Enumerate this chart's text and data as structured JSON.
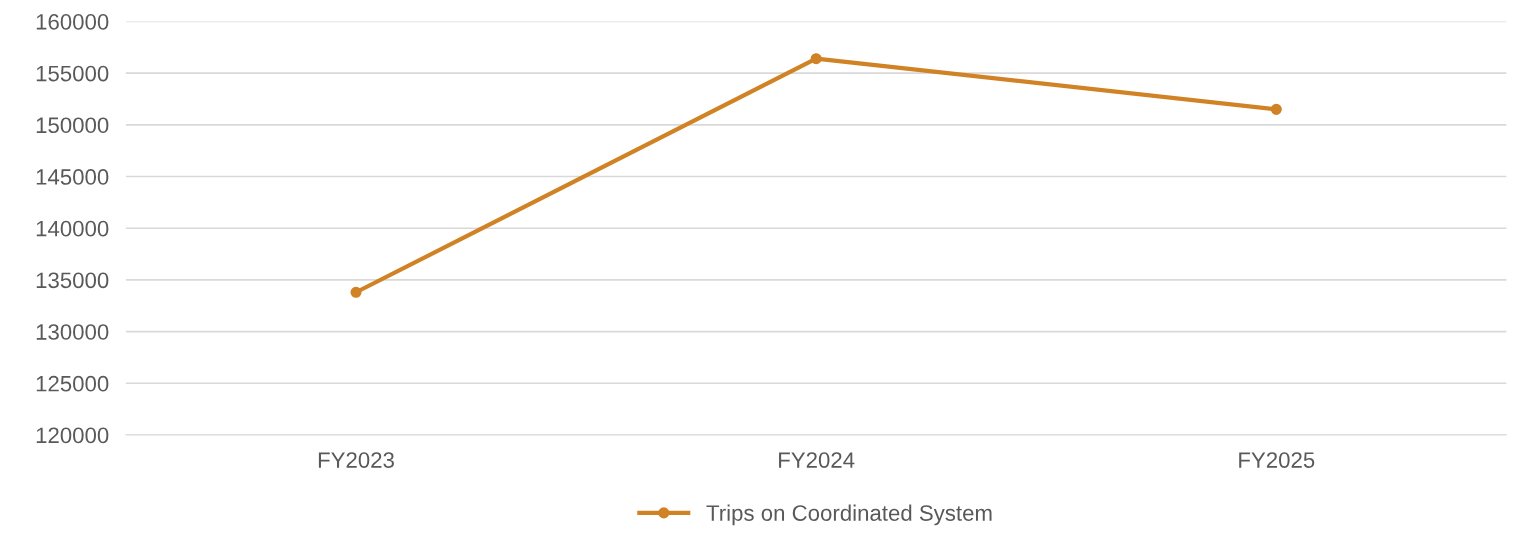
{
  "chart_data": {
    "type": "line",
    "categories": [
      "FY2023",
      "FY2024",
      "FY2025"
    ],
    "series": [
      {
        "name": "Trips on Coordinated System",
        "color": "#d08224",
        "values": [
          133800,
          156400,
          151500
        ]
      }
    ],
    "ylim": [
      120000,
      160000
    ],
    "yticks": [
      120000,
      125000,
      130000,
      135000,
      140000,
      145000,
      150000,
      155000,
      160000
    ],
    "grid": "y",
    "legend": "bottom",
    "marker": "circle",
    "line_style": "solid"
  }
}
